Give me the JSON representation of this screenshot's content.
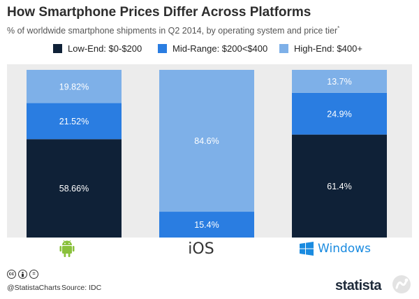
{
  "title": "How Smartphone Prices Differ Across Platforms",
  "subtitle": "% of worldwide smartphone shipments in Q2 2014, by operating system and price tier",
  "subtitle_note": "*",
  "colors": {
    "low": "#0f2137",
    "mid": "#2a7de1",
    "high": "#7eb0e8",
    "bg": "#ececec"
  },
  "platforms": {
    "android_icon": "android-icon",
    "ios_label": "iOS",
    "windows_label": "Windows",
    "windows_icon": "windows-icon"
  },
  "footer": {
    "handle": "@StatistaCharts",
    "source": "Source: IDC",
    "brand": "statista"
  },
  "chart_data": {
    "type": "bar",
    "stacked": true,
    "categories": [
      "Android",
      "iOS",
      "Windows"
    ],
    "series": [
      {
        "name": "Low-End: $0-$200",
        "values": [
          58.66,
          0,
          61.4
        ],
        "labels": [
          "58.66%",
          "",
          "61.4%"
        ]
      },
      {
        "name": "Mid-Range: $200<$400",
        "values": [
          21.52,
          15.4,
          24.9
        ],
        "labels": [
          "21.52%",
          "15.4%",
          "24.9%"
        ]
      },
      {
        "name": "High-End: $400+",
        "values": [
          19.82,
          84.6,
          13.7
        ],
        "labels": [
          "19.82%",
          "84.6%",
          "13.7%"
        ]
      }
    ],
    "ylim": [
      0,
      100
    ],
    "legend_position": "top"
  }
}
